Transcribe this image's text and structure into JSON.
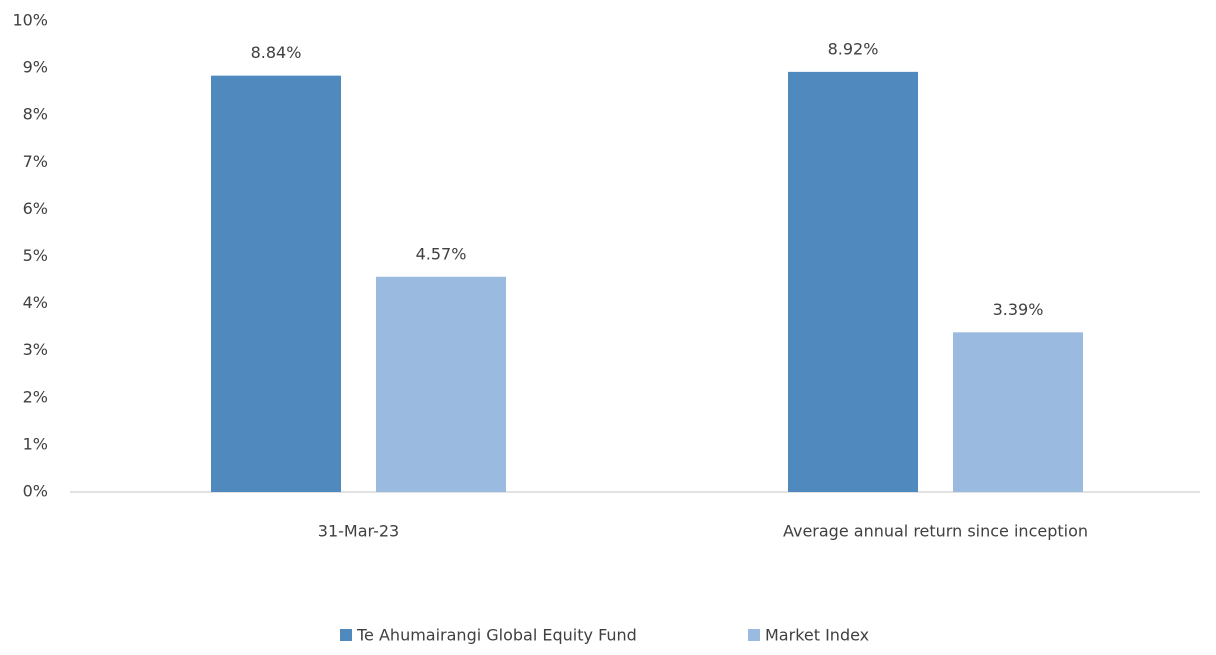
{
  "chart_data": {
    "type": "bar",
    "categories": [
      "31-Mar-23",
      "Average annual return since inception"
    ],
    "series": [
      {
        "name": "Te Ahumairangi Global Equity Fund",
        "color": "#4f89bd",
        "values": [
          8.84,
          8.92
        ],
        "value_labels": [
          "8.84%",
          "8.92%"
        ]
      },
      {
        "name": "Market Index",
        "color": "#9bbadf",
        "values": [
          4.57,
          3.39
        ],
        "value_labels": [
          "4.57%",
          "3.39%"
        ]
      }
    ],
    "ylim": [
      0,
      10
    ],
    "yticks": [
      {
        "value": 0,
        "label": "0%"
      },
      {
        "value": 1,
        "label": "1%"
      },
      {
        "value": 2,
        "label": "2%"
      },
      {
        "value": 3,
        "label": "3%"
      },
      {
        "value": 4,
        "label": "4%"
      },
      {
        "value": 5,
        "label": "5%"
      },
      {
        "value": 6,
        "label": "6%"
      },
      {
        "value": 7,
        "label": "7%"
      },
      {
        "value": 8,
        "label": "8%"
      },
      {
        "value": 9,
        "label": "9%"
      },
      {
        "value": 10,
        "label": "10%"
      }
    ],
    "grid": false,
    "legend": "bottom"
  }
}
